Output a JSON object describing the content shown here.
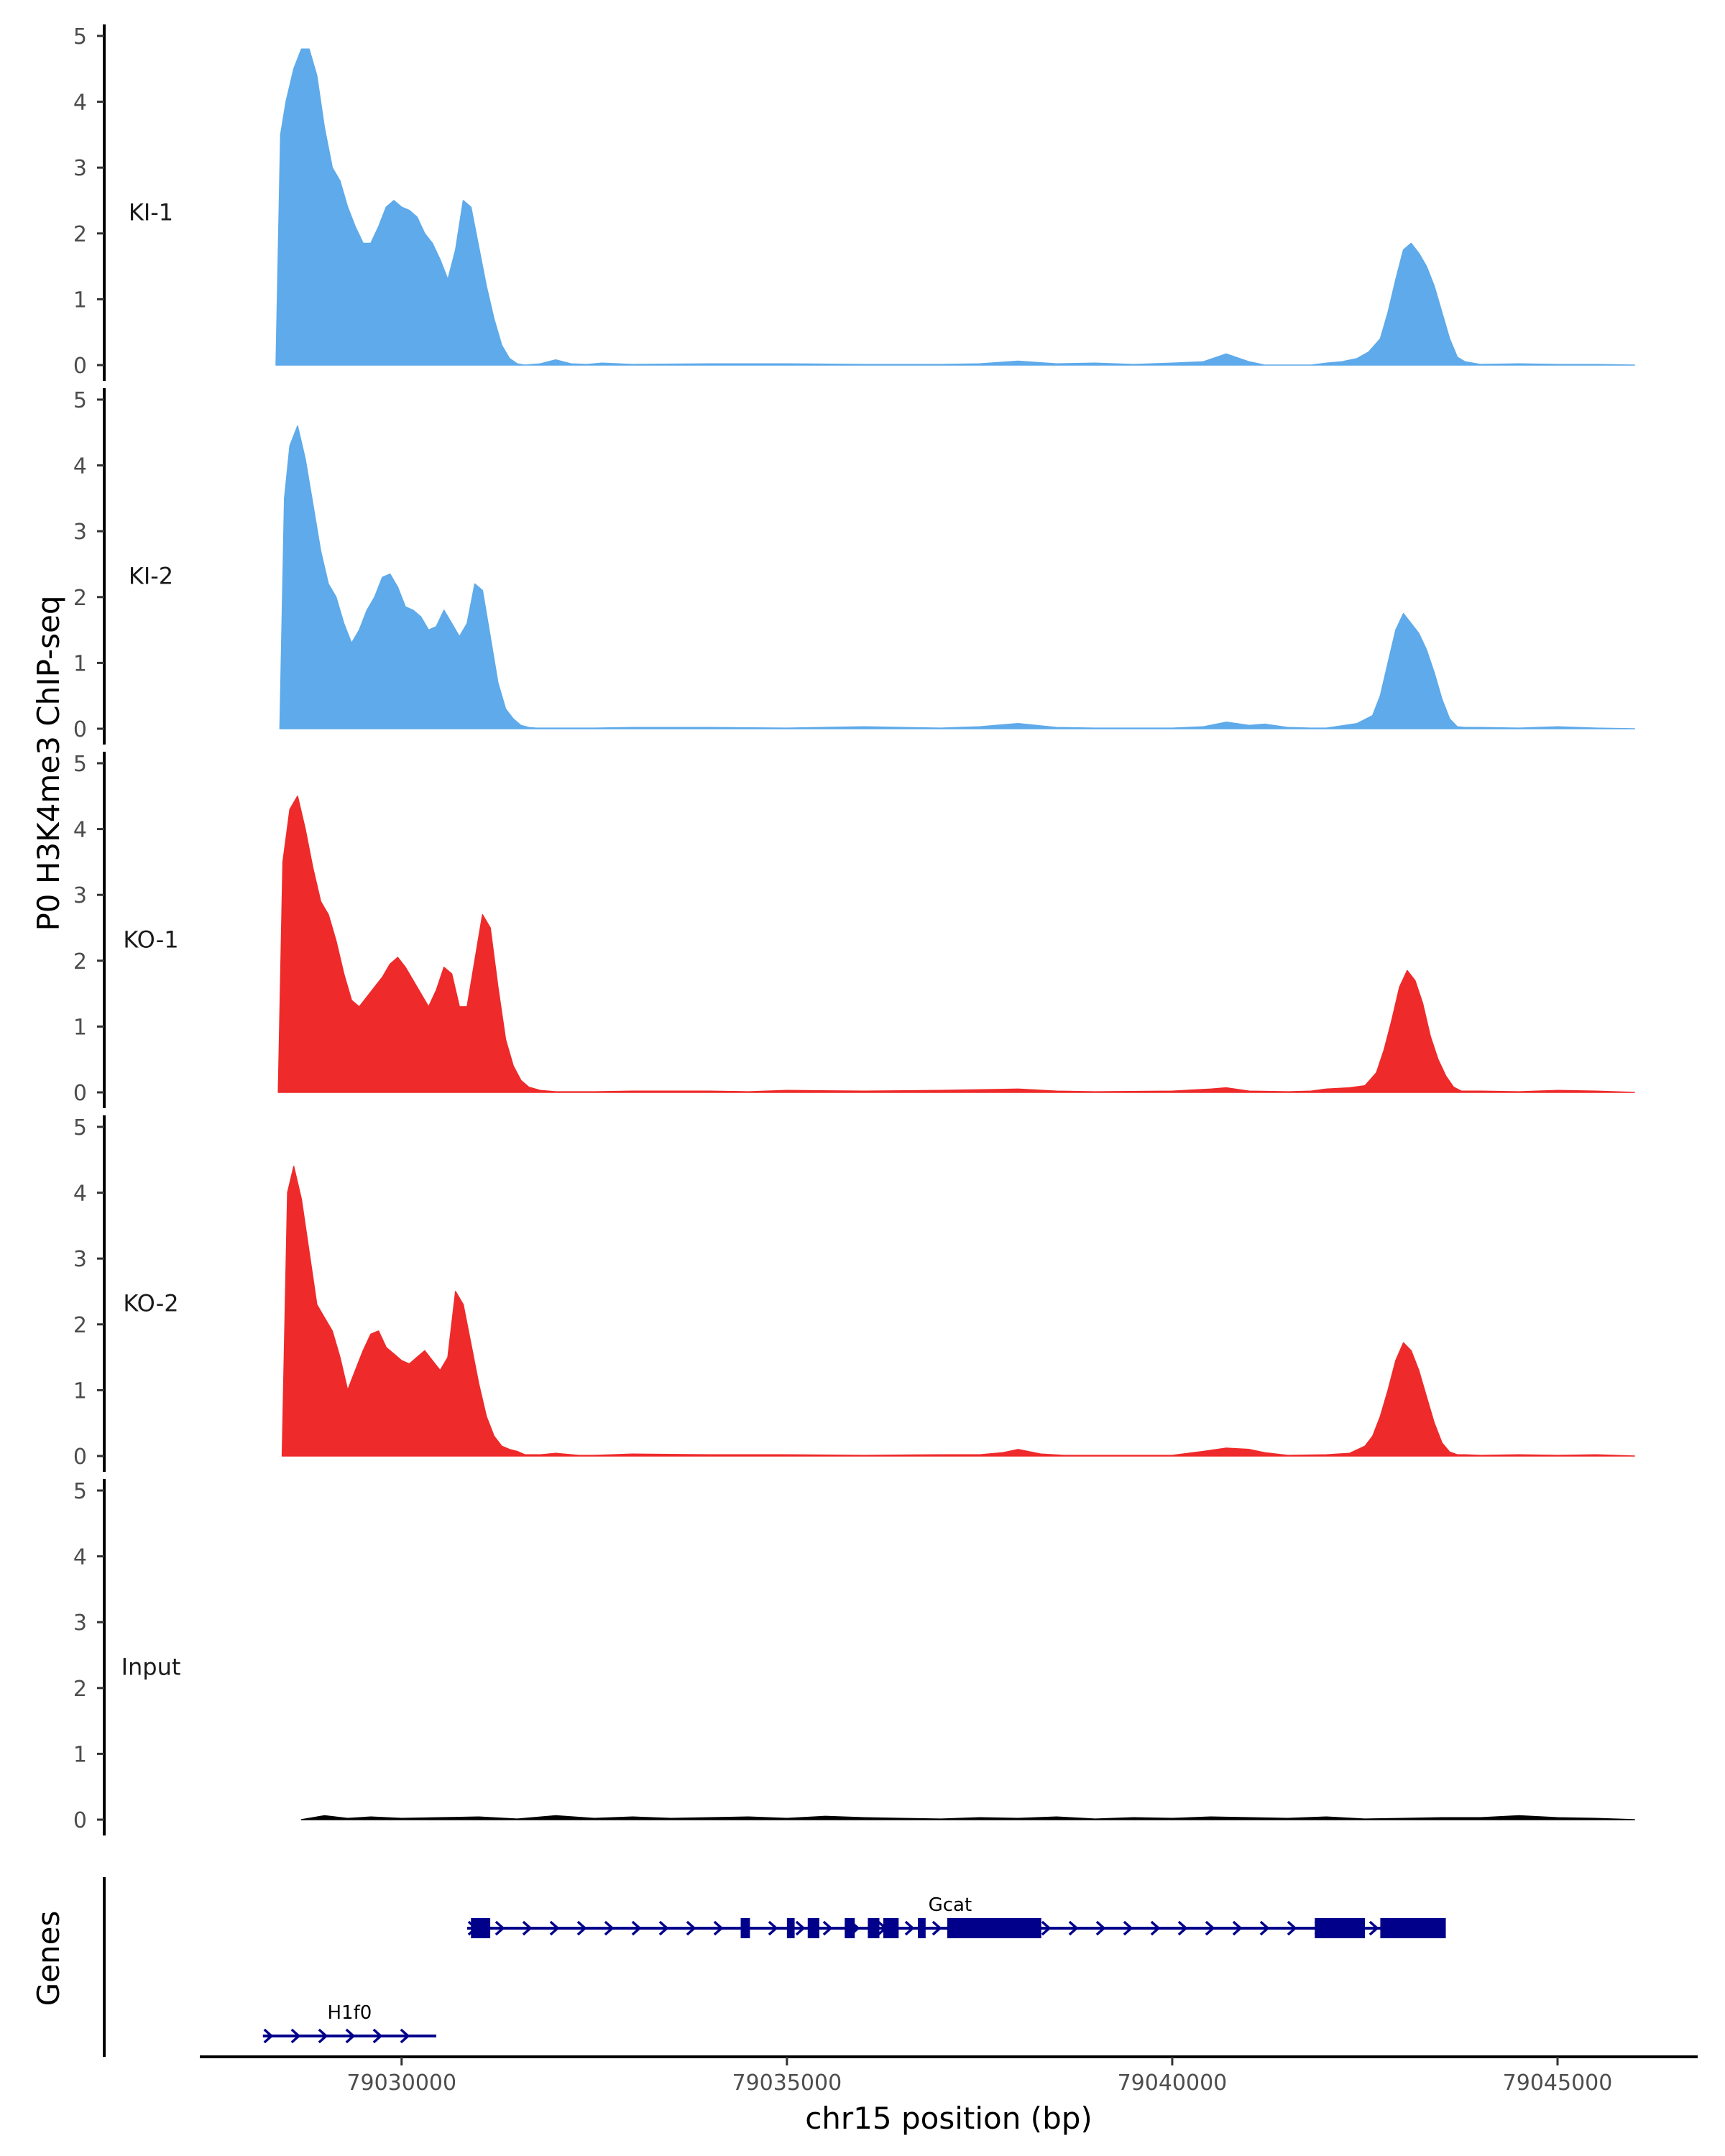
{
  "chart_data": {
    "type": "area",
    "ylabel": "P0 H3K4me3 ChIP-seq",
    "xlabel": "chr15 position (bp)",
    "genes_label": "Genes",
    "xlim": [
      79027400,
      79046800
    ],
    "ylim": [
      0,
      5
    ],
    "yticks": [
      0,
      1,
      2,
      3,
      4,
      5
    ],
    "xticks": [
      79030000,
      79035000,
      79040000,
      79045000
    ],
    "tracks": [
      {
        "name": "KI-1",
        "color": "#5eaaea",
        "x": [
          79028370,
          79028430,
          79028500,
          79028600,
          79028700,
          79028800,
          79028900,
          79029000,
          79029100,
          79029200,
          79029300,
          79029400,
          79029500,
          79029600,
          79029700,
          79029800,
          79029900,
          79030000,
          79030100,
          79030200,
          79030300,
          79030400,
          79030500,
          79030600,
          79030700,
          79030800,
          79030900,
          79031000,
          79031100,
          79031200,
          79031300,
          79031400,
          79031500,
          79031600,
          79031700,
          79031800,
          79032000,
          79032200,
          79032400,
          79032600,
          79033000,
          79034000,
          79035000,
          79036000,
          79037000,
          79037500,
          79038000,
          79038500,
          79039000,
          79039500,
          79040000,
          79040400,
          79040700,
          79041000,
          79041200,
          79041500,
          79041800,
          79042000,
          79042200,
          79042400,
          79042550,
          79042700,
          79042800,
          79042900,
          79043000,
          79043100,
          79043200,
          79043300,
          79043400,
          79043500,
          79043600,
          79043700,
          79043800,
          79044000,
          79044500,
          79045000,
          79045500,
          79046000
        ],
        "values": [
          0,
          3.5,
          4.0,
          4.5,
          4.8,
          4.8,
          4.4,
          3.6,
          3.0,
          2.8,
          2.4,
          2.1,
          1.85,
          1.85,
          2.1,
          2.4,
          2.5,
          2.4,
          2.35,
          2.25,
          2.0,
          1.85,
          1.6,
          1.3,
          1.75,
          2.5,
          2.4,
          1.8,
          1.2,
          0.7,
          0.3,
          0.1,
          0.02,
          0,
          0.01,
          0.02,
          0.08,
          0.02,
          0.01,
          0.03,
          0.01,
          0.02,
          0.02,
          0.01,
          0.01,
          0.02,
          0.06,
          0.02,
          0.03,
          0.01,
          0.03,
          0.05,
          0.17,
          0.05,
          0,
          0,
          0,
          0.03,
          0.05,
          0.1,
          0.2,
          0.4,
          0.8,
          1.3,
          1.75,
          1.85,
          1.7,
          1.5,
          1.2,
          0.8,
          0.4,
          0.12,
          0.05,
          0.01,
          0.02,
          0.01,
          0.01,
          0
        ]
      },
      {
        "name": "KI-2",
        "color": "#5eaaea",
        "x": [
          79028420,
          79028480,
          79028550,
          79028650,
          79028750,
          79028850,
          79028950,
          79029050,
          79029150,
          79029250,
          79029350,
          79029450,
          79029550,
          79029650,
          79029750,
          79029850,
          79029950,
          79030050,
          79030150,
          79030250,
          79030350,
          79030450,
          79030550,
          79030650,
          79030750,
          79030850,
          79030950,
          79031050,
          79031150,
          79031250,
          79031350,
          79031450,
          79031550,
          79031650,
          79031750,
          79032000,
          79032500,
          79033000,
          79034000,
          79035000,
          79036000,
          79037000,
          79037500,
          79038000,
          79038500,
          79039000,
          79040000,
          79040400,
          79040700,
          79041000,
          79041200,
          79041500,
          79041800,
          79042000,
          79042400,
          79042600,
          79042700,
          79042800,
          79042900,
          79043000,
          79043100,
          79043200,
          79043300,
          79043400,
          79043500,
          79043600,
          79043700,
          79043800,
          79044000,
          79044500,
          79045000,
          79045500,
          79046000
        ],
        "values": [
          0,
          3.5,
          4.3,
          4.6,
          4.1,
          3.4,
          2.7,
          2.2,
          2.0,
          1.6,
          1.3,
          1.5,
          1.8,
          2.0,
          2.3,
          2.35,
          2.15,
          1.85,
          1.8,
          1.7,
          1.5,
          1.55,
          1.8,
          1.6,
          1.4,
          1.6,
          2.2,
          2.1,
          1.4,
          0.7,
          0.3,
          0.15,
          0.05,
          0.02,
          0.01,
          0.01,
          0.01,
          0.02,
          0.02,
          0.01,
          0.03,
          0.01,
          0.03,
          0.08,
          0.02,
          0.01,
          0.01,
          0.03,
          0.1,
          0.05,
          0.07,
          0.02,
          0.01,
          0.01,
          0.08,
          0.2,
          0.5,
          1.0,
          1.5,
          1.75,
          1.6,
          1.45,
          1.2,
          0.85,
          0.45,
          0.15,
          0.03,
          0.02,
          0.02,
          0.01,
          0.03,
          0.01,
          0
        ]
      },
      {
        "name": "KO-1",
        "color": "#ee2a2a",
        "x": [
          79028400,
          79028460,
          79028550,
          79028650,
          79028750,
          79028850,
          79028950,
          79029050,
          79029150,
          79029250,
          79029350,
          79029450,
          79029550,
          79029650,
          79029750,
          79029850,
          79029950,
          79030050,
          79030150,
          79030250,
          79030350,
          79030450,
          79030550,
          79030650,
          79030750,
          79030850,
          79030950,
          79031050,
          79031150,
          79031250,
          79031350,
          79031450,
          79031550,
          79031650,
          79031800,
          79032000,
          79032500,
          79033000,
          79034000,
          79034500,
          79035000,
          79036000,
          79037000,
          79038000,
          79038500,
          79039000,
          79040000,
          79040500,
          79040700,
          79041000,
          79041500,
          79041800,
          79042000,
          79042300,
          79042500,
          79042650,
          79042750,
          79042850,
          79042950,
          79043050,
          79043150,
          79043250,
          79043350,
          79043450,
          79043550,
          79043650,
          79043750,
          79044000,
          79044500,
          79045000,
          79045500,
          79046000
        ],
        "values": [
          0,
          3.5,
          4.3,
          4.5,
          4.0,
          3.4,
          2.9,
          2.7,
          2.3,
          1.8,
          1.4,
          1.3,
          1.45,
          1.6,
          1.75,
          1.95,
          2.05,
          1.9,
          1.7,
          1.5,
          1.3,
          1.55,
          1.9,
          1.8,
          1.3,
          1.3,
          2.0,
          2.7,
          2.5,
          1.6,
          0.8,
          0.4,
          0.18,
          0.08,
          0.03,
          0.01,
          0.01,
          0.02,
          0.02,
          0.01,
          0.03,
          0.02,
          0.03,
          0.05,
          0.02,
          0.01,
          0.02,
          0.05,
          0.07,
          0.02,
          0.01,
          0.02,
          0.05,
          0.07,
          0.1,
          0.3,
          0.65,
          1.1,
          1.6,
          1.85,
          1.7,
          1.35,
          0.85,
          0.5,
          0.25,
          0.08,
          0.02,
          0.02,
          0.01,
          0.03,
          0.02,
          0
        ]
      },
      {
        "name": "KO-2",
        "color": "#ee2a2a",
        "x": [
          79028450,
          79028520,
          79028600,
          79028700,
          79028800,
          79028900,
          79029000,
          79029100,
          79029200,
          79029300,
          79029400,
          79029500,
          79029600,
          79029700,
          79029800,
          79029900,
          79030000,
          79030100,
          79030200,
          79030300,
          79030400,
          79030500,
          79030600,
          79030700,
          79030800,
          79030900,
          79031000,
          79031100,
          79031200,
          79031300,
          79031400,
          79031500,
          79031600,
          79031800,
          79032000,
          79032300,
          79032500,
          79033000,
          79034000,
          79035000,
          79036000,
          79037000,
          79037500,
          79037800,
          79038000,
          79038300,
          79038600,
          79039000,
          79040000,
          79040400,
          79040700,
          79041000,
          79041200,
          79041500,
          79042000,
          79042300,
          79042500,
          79042600,
          79042700,
          79042800,
          79042900,
          79043000,
          79043100,
          79043200,
          79043300,
          79043400,
          79043500,
          79043600,
          79043700,
          79043800,
          79044000,
          79044500,
          79045000,
          79045500,
          79046000
        ],
        "values": [
          0,
          4.0,
          4.4,
          3.9,
          3.1,
          2.3,
          2.1,
          1.9,
          1.5,
          1.0,
          1.3,
          1.6,
          1.85,
          1.9,
          1.65,
          1.55,
          1.45,
          1.4,
          1.5,
          1.6,
          1.45,
          1.3,
          1.5,
          2.5,
          2.3,
          1.7,
          1.1,
          0.6,
          0.3,
          0.15,
          0.1,
          0.07,
          0.02,
          0.02,
          0.04,
          0.01,
          0.01,
          0.03,
          0.02,
          0.02,
          0.01,
          0.02,
          0.02,
          0.05,
          0.1,
          0.03,
          0.01,
          0.01,
          0.01,
          0.07,
          0.12,
          0.1,
          0.05,
          0.01,
          0.02,
          0.04,
          0.15,
          0.3,
          0.6,
          1.0,
          1.45,
          1.72,
          1.6,
          1.3,
          0.9,
          0.5,
          0.2,
          0.06,
          0.02,
          0.02,
          0.01,
          0.02,
          0.01,
          0.02,
          0
        ]
      },
      {
        "name": "Input",
        "color": "#000000",
        "x": [
          79028700,
          79029000,
          79029300,
          79029600,
          79030000,
          79030500,
          79031000,
          79031500,
          79032000,
          79032500,
          79033000,
          79033500,
          79034000,
          79034500,
          79035000,
          79035500,
          79036000,
          79036500,
          79037000,
          79037500,
          79038000,
          79038500,
          79039000,
          79039500,
          79040000,
          79040500,
          79041000,
          79041500,
          79042000,
          79042500,
          79043000,
          79043500,
          79044000,
          79044500,
          79045000,
          79045500,
          79046000
        ],
        "values": [
          0,
          0.06,
          0.02,
          0.04,
          0.02,
          0.03,
          0.04,
          0.01,
          0.06,
          0.02,
          0.04,
          0.02,
          0.03,
          0.04,
          0.02,
          0.05,
          0.03,
          0.02,
          0.01,
          0.03,
          0.02,
          0.04,
          0.01,
          0.03,
          0.02,
          0.04,
          0.03,
          0.02,
          0.04,
          0.01,
          0.02,
          0.03,
          0.03,
          0.06,
          0.03,
          0.02,
          0
        ]
      }
    ],
    "genes": [
      {
        "name": "Gcat",
        "color": "#00008b",
        "strand": "+",
        "start": 79030850,
        "end": 79043550,
        "exons": [
          [
            79030900,
            79031150
          ],
          [
            79034400,
            79034520
          ],
          [
            79035000,
            79035100
          ],
          [
            79035270,
            79035420
          ],
          [
            79035750,
            79035880
          ],
          [
            79036050,
            79036200
          ],
          [
            79036250,
            79036450
          ],
          [
            79036700,
            79036800
          ],
          [
            79037080,
            79038300
          ],
          [
            79041850,
            79042500
          ],
          [
            79042700,
            79043550
          ]
        ]
      },
      {
        "name": "H1f0",
        "color": "#00008b",
        "strand": "+",
        "start": 79028200,
        "end": 79030450,
        "exons": []
      }
    ]
  }
}
